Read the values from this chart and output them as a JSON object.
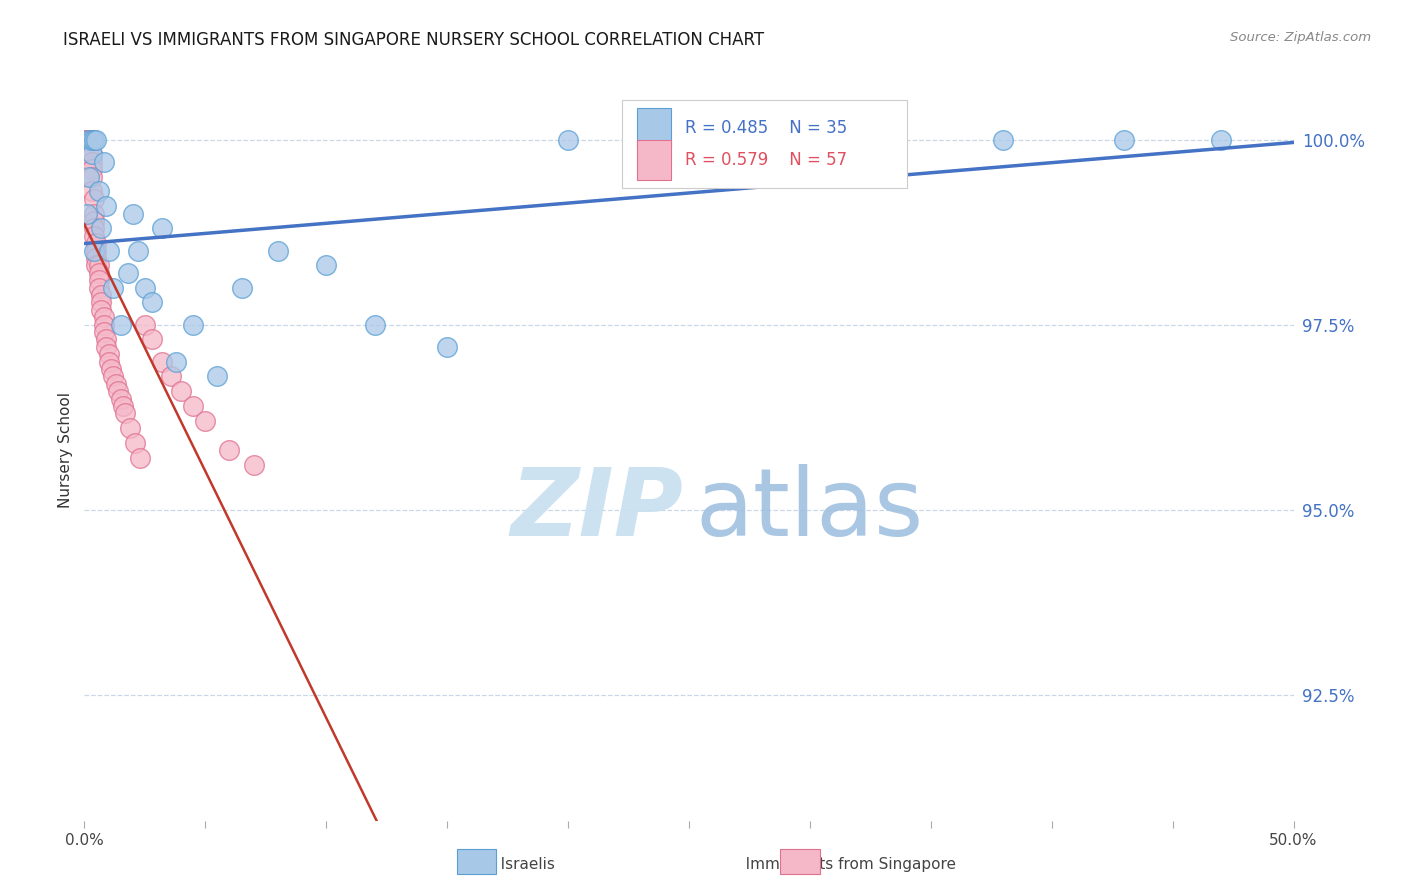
{
  "title": "ISRAELI VS IMMIGRANTS FROM SINGAPORE NURSERY SCHOOL CORRELATION CHART",
  "source": "Source: ZipAtlas.com",
  "ylabel": "Nursery School",
  "ytick_labels": [
    "100.0%",
    "97.5%",
    "95.0%",
    "92.5%"
  ],
  "ytick_values": [
    1.0,
    0.975,
    0.95,
    0.925
  ],
  "xlim": [
    0.0,
    0.5
  ],
  "ylim": [
    0.908,
    1.008
  ],
  "legend_r1": "R = 0.485",
  "legend_n1": "N = 35",
  "legend_r2": "R = 0.579",
  "legend_n2": "N = 57",
  "israelis_color": "#a8c8e8",
  "israelis_edge": "#5a9fd4",
  "singapore_color": "#f5b8c8",
  "singapore_edge": "#e07090",
  "trendline_israelis_color": "#4472c4",
  "trendline_singapore_color": "#c0392b",
  "legend_blue_fill": "#a8c8e8",
  "legend_blue_edge": "#5a9fd4",
  "legend_pink_fill": "#f5b8c8",
  "legend_pink_edge": "#e07090",
  "ytick_color": "#4472c4",
  "background_color": "#ffffff",
  "grid_color": "#c8d8e8",
  "watermark_zip_color": "#c8dff0",
  "watermark_atlas_color": "#a0c0e0",
  "israelis_x": [
    0.001,
    0.002,
    0.002,
    0.003,
    0.003,
    0.004,
    0.004,
    0.005,
    0.006,
    0.007,
    0.008,
    0.009,
    0.01,
    0.012,
    0.015,
    0.018,
    0.02,
    0.022,
    0.025,
    0.028,
    0.032,
    0.038,
    0.045,
    0.055,
    0.065,
    0.08,
    0.1,
    0.12,
    0.15,
    0.2,
    0.25,
    0.3,
    0.38,
    0.43,
    0.47
  ],
  "israelis_y": [
    0.99,
    0.995,
    1.0,
    0.998,
    1.0,
    1.0,
    0.985,
    1.0,
    0.993,
    0.988,
    0.997,
    0.991,
    0.985,
    0.98,
    0.975,
    0.982,
    0.99,
    0.985,
    0.98,
    0.978,
    0.988,
    0.97,
    0.975,
    0.968,
    0.98,
    0.985,
    0.983,
    0.975,
    0.972,
    1.0,
    1.0,
    1.0,
    1.0,
    1.0,
    1.0
  ],
  "singapore_x": [
    0.001,
    0.001,
    0.001,
    0.001,
    0.002,
    0.002,
    0.002,
    0.002,
    0.002,
    0.003,
    0.003,
    0.003,
    0.003,
    0.003,
    0.003,
    0.004,
    0.004,
    0.004,
    0.004,
    0.004,
    0.005,
    0.005,
    0.005,
    0.005,
    0.006,
    0.006,
    0.006,
    0.006,
    0.007,
    0.007,
    0.007,
    0.008,
    0.008,
    0.008,
    0.009,
    0.009,
    0.01,
    0.01,
    0.011,
    0.012,
    0.013,
    0.014,
    0.015,
    0.016,
    0.017,
    0.019,
    0.021,
    0.023,
    0.025,
    0.028,
    0.032,
    0.036,
    0.04,
    0.045,
    0.05,
    0.06,
    0.07
  ],
  "singapore_y": [
    1.0,
    1.0,
    1.0,
    1.0,
    1.0,
    1.0,
    1.0,
    1.0,
    0.998,
    1.0,
    0.998,
    0.997,
    0.996,
    0.995,
    0.993,
    0.992,
    0.99,
    0.989,
    0.988,
    0.987,
    0.986,
    0.985,
    0.984,
    0.983,
    0.983,
    0.982,
    0.981,
    0.98,
    0.979,
    0.978,
    0.977,
    0.976,
    0.975,
    0.974,
    0.973,
    0.972,
    0.971,
    0.97,
    0.969,
    0.968,
    0.967,
    0.966,
    0.965,
    0.964,
    0.963,
    0.961,
    0.959,
    0.957,
    0.975,
    0.973,
    0.97,
    0.968,
    0.966,
    0.964,
    0.962,
    0.958,
    0.956
  ]
}
